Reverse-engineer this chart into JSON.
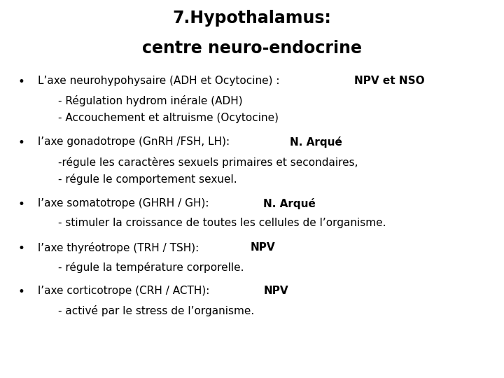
{
  "title_line1": "7.Hypothalamus:",
  "title_line2": "centre neuro-endocrine",
  "background_color": "#ffffff",
  "text_color": "#000000",
  "title_fontsize": 17,
  "body_fontsize": 11,
  "bullet_items": [
    {
      "line1_normal": "L’axe neurohypohysaire (ADH et Ocytocine) : ",
      "line1_bold": "NPV et NSO",
      "sub": [
        "- Régulation hydrom inérale (ADH)",
        "- Accouchement et altruisme (Ocytocine)"
      ]
    },
    {
      "line1_normal": "l’axe gonadotrope (GnRH /FSH, LH): ",
      "line1_bold": "N. Arqué",
      "sub": [
        "-régule les caractères sexuels primaires et secondaires,",
        "- régule le comportement sexuel."
      ]
    },
    {
      "line1_normal": "l’axe somatotrope (GHRH / GH): ",
      "line1_bold": "N. Arqué",
      "sub": [
        "- stimuler la croissance de toutes les cellules de l’organisme."
      ]
    },
    {
      "line1_normal": "l’axe thyréotrope (TRH / TSH): ",
      "line1_bold": "NPV",
      "sub": [
        "- régule la température corporelle."
      ]
    },
    {
      "line1_normal": "l’axe corticotrope (CRH / ACTH): ",
      "line1_bold": "NPV",
      "sub": [
        "- activé par le stress de l’organisme."
      ]
    }
  ]
}
